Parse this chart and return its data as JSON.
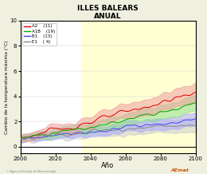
{
  "title": "ILLES BALEARS",
  "subtitle": "ANUAL",
  "xlabel": "Año",
  "ylabel": "Cambio de la temperatura máxima (°C)",
  "xlim": [
    2000,
    2100
  ],
  "ylim": [
    -0.5,
    10
  ],
  "yticks": [
    0,
    2,
    4,
    6,
    8,
    10
  ],
  "xticks": [
    2000,
    2020,
    2040,
    2060,
    2080,
    2100
  ],
  "bg_color": "#f0f0e0",
  "plot_bg": "#ffffff",
  "scenarios": [
    {
      "name": "A2",
      "count": "(11)",
      "color": "#dd0000",
      "shade": "#f0a0a0"
    },
    {
      "name": "A1B",
      "count": "(19)",
      "color": "#00aa00",
      "shade": "#90dd90"
    },
    {
      "name": "B1",
      "count": "(13)",
      "color": "#4444ff",
      "shade": "#aaaaff"
    },
    {
      "name": "E1",
      "count": "( 4)",
      "color": "#888888",
      "shade": "#cccccc"
    }
  ],
  "hline_y": 0,
  "seed": 123,
  "highlight_x": 2035,
  "highlight_color": "#ffffcc"
}
